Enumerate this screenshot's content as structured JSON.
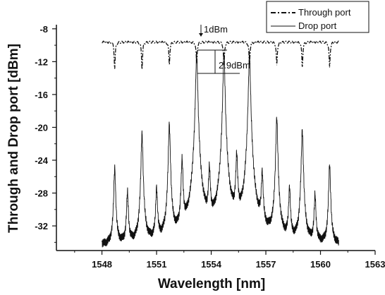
{
  "chart_data": {
    "type": "line",
    "title": "",
    "xlabel": "Wavelength [nm]",
    "ylabel": "Through and Drop port [dBm]",
    "xlim": [
      1545.5,
      1563
    ],
    "ylim": [
      -35,
      -7.5
    ],
    "x_ticks": [
      1548,
      1551,
      1554,
      1557,
      1560,
      1563
    ],
    "y_ticks": [
      -8,
      -12,
      -16,
      -20,
      -24,
      -28,
      -32
    ],
    "grid": false,
    "legend_position": "top-right",
    "legend": [
      "Through port",
      "Drop port"
    ],
    "annotations": [
      "1dBm",
      "2.9dBm"
    ],
    "series": [
      {
        "name": "Through port",
        "style": "dash-dot",
        "x_range": [
          1548.0,
          1561.0
        ],
        "baseline": -9.6,
        "dips": [
          {
            "x": 1548.7,
            "y": -12.8
          },
          {
            "x": 1550.2,
            "y": -12.8
          },
          {
            "x": 1551.7,
            "y": -12.3
          },
          {
            "x": 1553.2,
            "y": -12.2
          },
          {
            "x": 1554.7,
            "y": -12.5
          },
          {
            "x": 1556.1,
            "y": -12.3
          },
          {
            "x": 1557.6,
            "y": -12.4
          },
          {
            "x": 1559.0,
            "y": -12.6
          },
          {
            "x": 1560.5,
            "y": -12.7
          }
        ]
      },
      {
        "name": "Drop port",
        "style": "solid",
        "x_range": [
          1548.0,
          1561.0
        ],
        "floor": -34.5,
        "peaks": [
          {
            "x": 1548.7,
            "y": -25.5
          },
          {
            "x": 1549.4,
            "y": -29.0
          },
          {
            "x": 1550.2,
            "y": -21.0
          },
          {
            "x": 1551.0,
            "y": -28.5
          },
          {
            "x": 1551.7,
            "y": -19.8
          },
          {
            "x": 1552.4,
            "y": -24.5
          },
          {
            "x": 1553.2,
            "y": -10.9
          },
          {
            "x": 1553.9,
            "y": -26.0
          },
          {
            "x": 1554.7,
            "y": -10.9
          },
          {
            "x": 1555.4,
            "y": -24.0
          },
          {
            "x": 1556.1,
            "y": -11.0
          },
          {
            "x": 1556.8,
            "y": -26.5
          },
          {
            "x": 1557.6,
            "y": -19.0
          },
          {
            "x": 1558.3,
            "y": -28.5
          },
          {
            "x": 1559.0,
            "y": -20.5
          },
          {
            "x": 1559.7,
            "y": -29.5
          },
          {
            "x": 1560.5,
            "y": -25.0
          }
        ]
      }
    ]
  }
}
